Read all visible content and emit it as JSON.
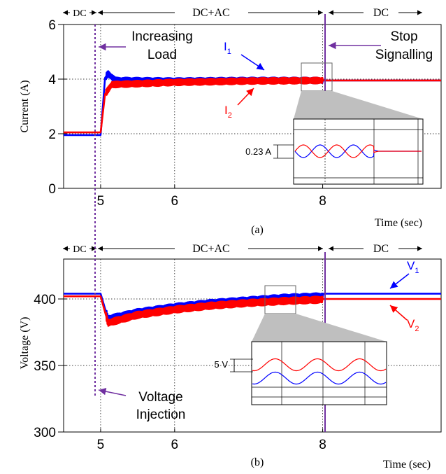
{
  "chart_data": [
    {
      "type": "line",
      "panel_label": "(a)",
      "xlabel": "Time (sec)",
      "ylabel": "Current (A)",
      "xlim": [
        4.5,
        9.6
      ],
      "ylim": [
        0,
        6
      ],
      "xticks": [
        5,
        6,
        8
      ],
      "yticks": [
        0,
        2,
        4,
        6
      ],
      "grid": true,
      "regions": [
        {
          "label": "DC",
          "from": 4.55,
          "to": 5.03
        },
        {
          "label": "DC+AC",
          "from": 5.03,
          "to": 8.0
        },
        {
          "label": "DC",
          "from": 8.0,
          "to": 9.35
        }
      ],
      "events": [
        {
          "x": 5.03,
          "label_lines": [
            "Increasing",
            "Load"
          ],
          "color": "#7030a0"
        },
        {
          "x": 8.0,
          "label_lines": [
            "Stop",
            "Signalling"
          ],
          "color": "#7030a0"
        }
      ],
      "series": [
        {
          "name": "I1",
          "color": "#0000ff",
          "points": [
            [
              4.5,
              1.95
            ],
            [
              5.0,
              1.95
            ],
            [
              5.06,
              4.05
            ],
            [
              5.1,
              4.2
            ],
            [
              5.2,
              3.95
            ],
            [
              6.0,
              3.93
            ],
            [
              7.0,
              3.95
            ],
            [
              8.0,
              3.95
            ],
            [
              9.6,
              3.95
            ]
          ],
          "oscillation_amplitude": 0.11
        },
        {
          "name": "I2",
          "color": "#ff0000",
          "points": [
            [
              4.5,
              2.05
            ],
            [
              5.0,
              2.05
            ],
            [
              5.06,
              3.45
            ],
            [
              5.15,
              3.8
            ],
            [
              6.0,
              3.88
            ],
            [
              7.0,
              3.93
            ],
            [
              8.0,
              3.95
            ],
            [
              9.6,
              3.95
            ]
          ],
          "oscillation_amplitude": 0.11
        }
      ],
      "inset": {
        "x_range": [
          7.7,
          8.1
        ],
        "annotation": "0.23 A"
      }
    },
    {
      "type": "line",
      "panel_label": "(b)",
      "xlabel": "Time (sec)",
      "ylabel": "Voltage (V)",
      "xlim": [
        4.5,
        9.6
      ],
      "ylim": [
        300,
        430
      ],
      "xticks": [
        5,
        6,
        8
      ],
      "yticks": [
        300,
        350,
        400
      ],
      "grid": true,
      "regions": [
        {
          "label": "DC",
          "from": 4.55,
          "to": 5.03
        },
        {
          "label": "DC+AC",
          "from": 5.03,
          "to": 8.0
        },
        {
          "label": "DC",
          "from": 8.0,
          "to": 9.35
        }
      ],
      "events": [
        {
          "x": 5.03,
          "label_lines": [
            "Voltage",
            "Injection"
          ],
          "color": "#7030a0"
        },
        {
          "x": 8.0,
          "label_lines": [],
          "color": "#7030a0"
        }
      ],
      "series": [
        {
          "name": "V1",
          "color": "#0000ff",
          "points": [
            [
              4.5,
              404
            ],
            [
              5.0,
              404
            ],
            [
              5.1,
              385
            ],
            [
              5.5,
              390
            ],
            [
              6.0,
              394
            ],
            [
              6.5,
              397
            ],
            [
              7.0,
              399
            ],
            [
              7.5,
              401
            ],
            [
              8.0,
              402
            ],
            [
              8.01,
              404
            ],
            [
              9.6,
              404
            ]
          ],
          "oscillation_amplitude": 2.5
        },
        {
          "name": "V2",
          "color": "#ff0000",
          "points": [
            [
              4.5,
              402
            ],
            [
              5.0,
              402
            ],
            [
              5.1,
              382
            ],
            [
              5.5,
              388
            ],
            [
              6.0,
              392
            ],
            [
              6.5,
              395
            ],
            [
              7.0,
              397
            ],
            [
              7.5,
              398.5
            ],
            [
              8.0,
              399.5
            ],
            [
              8.01,
              400
            ],
            [
              9.6,
              400
            ]
          ],
          "oscillation_amplitude": 2.5
        }
      ],
      "inset": {
        "x_range": [
          7.2,
          7.45
        ],
        "annotation": "5 V"
      }
    }
  ]
}
